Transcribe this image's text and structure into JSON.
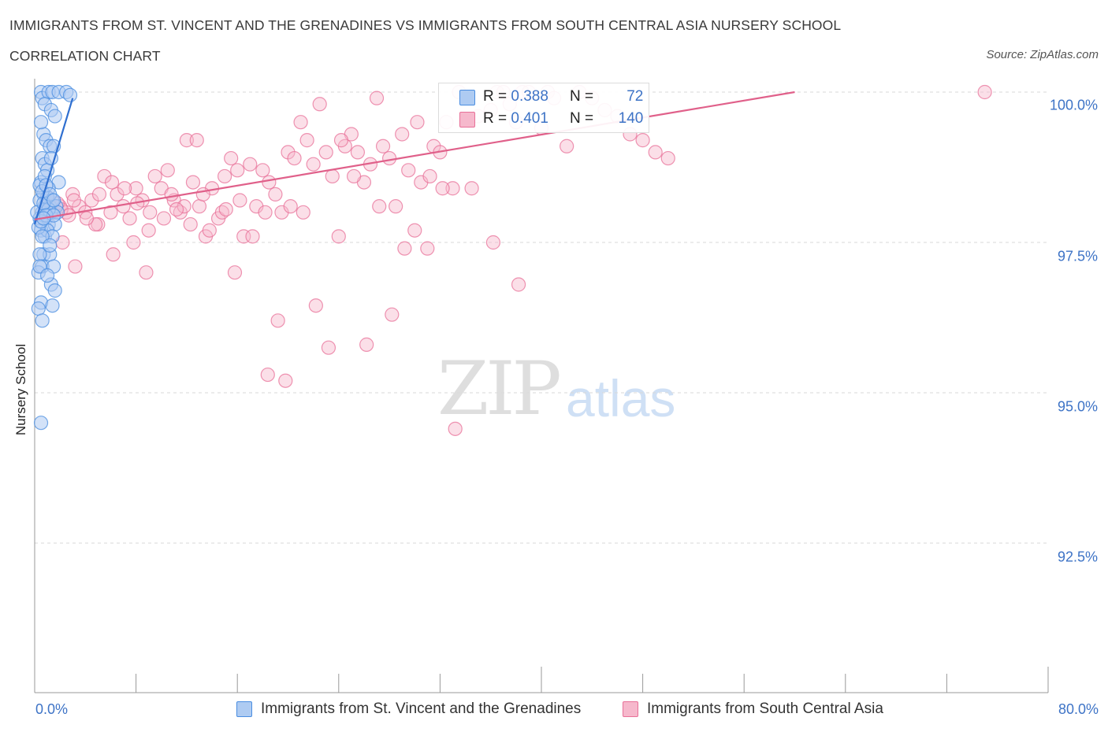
{
  "title_line1": "IMMIGRANTS FROM ST. VINCENT AND THE GRENADINES VS IMMIGRANTS FROM SOUTH CENTRAL ASIA NURSERY SCHOOL",
  "title_line2": "CORRELATION CHART",
  "source": "Source: ZipAtlas.com",
  "watermark_zip": "ZIP",
  "watermark_atlas": "atlas",
  "colors": {
    "blue": "#4a8de0",
    "blue_fill": "#aecbf2",
    "pink": "#e87098",
    "pink_fill": "#f6b8cc",
    "tick_text": "#3d73c6"
  },
  "legend": {
    "r1_label": "R = ",
    "r1_value": "0.388",
    "n1_label": "N = ",
    "n1_value": "72",
    "r2_label": "R = ",
    "r2_value": "0.401",
    "n2_label": "N = ",
    "n2_value": "140"
  },
  "chart_data": {
    "type": "scatter",
    "title": "IMMIGRANTS FROM ST. VINCENT AND THE GRENADINES VS IMMIGRANTS FROM SOUTH CENTRAL ASIA NURSERY SCHOOL CORRELATION CHART",
    "xlabel": "",
    "ylabel": "Nursery School",
    "xlim": [
      0,
      80
    ],
    "ylim": [
      90.0,
      100.3
    ],
    "x_tick_labels": [
      "0.0%",
      "80.0%"
    ],
    "y_ticks": [
      92.5,
      95.0,
      97.5,
      100.0
    ],
    "y_tick_labels": [
      "92.5%",
      "95.0%",
      "97.5%",
      "100.0%"
    ],
    "grid": true,
    "legend_position": "bottom",
    "series": [
      {
        "name": "Immigrants from St. Vincent and the Grenadines",
        "color": "#4a8de0",
        "R": 0.388,
        "N": 72,
        "trend": {
          "x": [
            0.0,
            3.0
          ],
          "y": [
            97.8,
            99.9
          ]
        },
        "points": [
          [
            0.5,
            100.0
          ],
          [
            0.6,
            99.9
          ],
          [
            1.1,
            100.0
          ],
          [
            1.4,
            100.0
          ],
          [
            1.9,
            100.0
          ],
          [
            2.5,
            100.0
          ],
          [
            2.8,
            99.95
          ],
          [
            0.8,
            99.8
          ],
          [
            1.3,
            99.7
          ],
          [
            1.6,
            99.6
          ],
          [
            0.7,
            99.3
          ],
          [
            0.9,
            99.2
          ],
          [
            1.2,
            99.1
          ],
          [
            1.5,
            99.1
          ],
          [
            0.6,
            98.9
          ],
          [
            0.8,
            98.8
          ],
          [
            1.0,
            98.7
          ],
          [
            0.5,
            98.5
          ],
          [
            1.9,
            98.5
          ],
          [
            0.7,
            98.3
          ],
          [
            1.1,
            98.4
          ],
          [
            0.4,
            98.2
          ],
          [
            0.8,
            98.1
          ],
          [
            1.2,
            98.1
          ],
          [
            1.4,
            98.2
          ],
          [
            0.6,
            98.0
          ],
          [
            0.9,
            97.9
          ],
          [
            1.3,
            98.0
          ],
          [
            0.4,
            97.9
          ],
          [
            1.1,
            97.8
          ],
          [
            1.6,
            97.8
          ],
          [
            0.5,
            97.7
          ],
          [
            0.8,
            97.6
          ],
          [
            1.0,
            97.7
          ],
          [
            1.4,
            97.6
          ],
          [
            0.7,
            97.3
          ],
          [
            1.2,
            97.3
          ],
          [
            0.4,
            97.3
          ],
          [
            0.6,
            97.1
          ],
          [
            1.5,
            97.1
          ],
          [
            0.3,
            97.0
          ],
          [
            1.3,
            96.8
          ],
          [
            1.6,
            96.7
          ],
          [
            0.5,
            96.5
          ],
          [
            1.4,
            96.45
          ],
          [
            0.3,
            96.4
          ],
          [
            0.6,
            96.2
          ],
          [
            0.5,
            94.5
          ],
          [
            0.9,
            98.05
          ],
          [
            1.7,
            98.1
          ],
          [
            0.4,
            98.45
          ],
          [
            1.0,
            98.25
          ],
          [
            0.2,
            98.0
          ],
          [
            0.3,
            97.75
          ],
          [
            1.8,
            98.0
          ],
          [
            0.5,
            97.85
          ],
          [
            1.1,
            98.05
          ],
          [
            0.7,
            98.15
          ],
          [
            0.9,
            97.95
          ],
          [
            1.5,
            97.95
          ],
          [
            0.6,
            97.6
          ],
          [
            0.8,
            98.6
          ],
          [
            1.2,
            97.45
          ],
          [
            0.4,
            97.1
          ],
          [
            1.0,
            96.95
          ],
          [
            0.5,
            99.5
          ],
          [
            1.3,
            98.9
          ],
          [
            0.6,
            98.35
          ],
          [
            0.9,
            98.45
          ],
          [
            1.2,
            98.3
          ],
          [
            0.7,
            97.9
          ],
          [
            1.5,
            98.2
          ]
        ]
      },
      {
        "name": "Immigrants from South Central Asia",
        "color": "#e87098",
        "R": 0.401,
        "N": 140,
        "trend": {
          "x": [
            0.0,
            60.0
          ],
          "y": [
            97.88,
            100.0
          ]
        },
        "points": [
          [
            1.5,
            98.0
          ],
          [
            2.0,
            98.1
          ],
          [
            2.5,
            98.0
          ],
          [
            3.0,
            98.3
          ],
          [
            3.5,
            98.1
          ],
          [
            4.0,
            98.0
          ],
          [
            4.5,
            98.2
          ],
          [
            5.0,
            97.8
          ],
          [
            5.5,
            98.6
          ],
          [
            6.0,
            98.0
          ],
          [
            6.5,
            98.3
          ],
          [
            7.0,
            98.1
          ],
          [
            7.5,
            97.9
          ],
          [
            8.0,
            98.4
          ],
          [
            8.5,
            98.2
          ],
          [
            9.0,
            97.7
          ],
          [
            9.5,
            98.6
          ],
          [
            10.0,
            98.4
          ],
          [
            10.5,
            98.7
          ],
          [
            11.0,
            98.2
          ],
          [
            11.5,
            98.0
          ],
          [
            12.0,
            99.2
          ],
          [
            12.5,
            98.5
          ],
          [
            13.0,
            98.1
          ],
          [
            13.5,
            97.6
          ],
          [
            14.0,
            98.4
          ],
          [
            14.5,
            97.9
          ],
          [
            15.0,
            98.6
          ],
          [
            15.5,
            98.9
          ],
          [
            16.0,
            98.7
          ],
          [
            16.5,
            97.6
          ],
          [
            17.0,
            98.8
          ],
          [
            17.5,
            98.1
          ],
          [
            18.0,
            98.7
          ],
          [
            18.5,
            98.5
          ],
          [
            19.0,
            98.3
          ],
          [
            19.5,
            98.0
          ],
          [
            20.0,
            99.0
          ],
          [
            20.5,
            98.9
          ],
          [
            21.0,
            99.5
          ],
          [
            21.5,
            99.2
          ],
          [
            22.0,
            98.8
          ],
          [
            22.5,
            99.8
          ],
          [
            23.0,
            99.0
          ],
          [
            23.5,
            98.6
          ],
          [
            24.0,
            97.6
          ],
          [
            24.5,
            99.1
          ],
          [
            25.0,
            99.3
          ],
          [
            25.5,
            99.0
          ],
          [
            26.0,
            98.5
          ],
          [
            26.5,
            98.8
          ],
          [
            27.0,
            99.9
          ],
          [
            27.5,
            99.1
          ],
          [
            28.0,
            98.9
          ],
          [
            28.5,
            98.1
          ],
          [
            29.0,
            99.3
          ],
          [
            29.5,
            98.7
          ],
          [
            30.0,
            97.7
          ],
          [
            30.5,
            98.5
          ],
          [
            31.0,
            97.4
          ],
          [
            31.5,
            99.1
          ],
          [
            32.0,
            99.0
          ],
          [
            32.5,
            99.5
          ],
          [
            33.0,
            98.4
          ],
          [
            33.5,
            100.0
          ],
          [
            34.0,
            99.5
          ],
          [
            34.5,
            98.4
          ],
          [
            35.0,
            99.6
          ],
          [
            36.0,
            99.7
          ],
          [
            36.5,
            100.0
          ],
          [
            37.0,
            100.0
          ],
          [
            37.5,
            99.8
          ],
          [
            38.0,
            99.5
          ],
          [
            38.5,
            100.0
          ],
          [
            39.0,
            100.0
          ],
          [
            40.0,
            99.4
          ],
          [
            40.5,
            100.0
          ],
          [
            41.0,
            99.9
          ],
          [
            42.0,
            99.1
          ],
          [
            43.0,
            100.0
          ],
          [
            44.0,
            99.9
          ],
          [
            45.0,
            99.7
          ],
          [
            46.0,
            99.6
          ],
          [
            47.0,
            99.3
          ],
          [
            48.0,
            99.2
          ],
          [
            49.0,
            99.0
          ],
          [
            50.0,
            98.9
          ],
          [
            2.2,
            97.5
          ],
          [
            3.2,
            97.1
          ],
          [
            4.8,
            97.8
          ],
          [
            6.2,
            97.3
          ],
          [
            7.8,
            97.5
          ],
          [
            8.8,
            97.0
          ],
          [
            10.8,
            98.3
          ],
          [
            11.8,
            98.1
          ],
          [
            12.8,
            99.2
          ],
          [
            13.8,
            97.7
          ],
          [
            14.8,
            98.0
          ],
          [
            15.8,
            97.0
          ],
          [
            17.2,
            97.6
          ],
          [
            18.2,
            98.0
          ],
          [
            19.2,
            96.2
          ],
          [
            20.2,
            98.1
          ],
          [
            21.2,
            98.0
          ],
          [
            22.2,
            96.45
          ],
          [
            23.2,
            95.75
          ],
          [
            24.2,
            99.2
          ],
          [
            25.2,
            98.6
          ],
          [
            26.2,
            95.8
          ],
          [
            27.2,
            98.1
          ],
          [
            28.2,
            96.3
          ],
          [
            29.2,
            97.4
          ],
          [
            30.2,
            99.5
          ],
          [
            31.2,
            98.6
          ],
          [
            32.2,
            98.4
          ],
          [
            33.2,
            94.4
          ],
          [
            36.2,
            97.5
          ],
          [
            38.2,
            96.8
          ],
          [
            18.4,
            95.3
          ],
          [
            19.8,
            95.2
          ],
          [
            16.2,
            98.2
          ],
          [
            15.1,
            98.05
          ],
          [
            13.3,
            98.3
          ],
          [
            12.3,
            97.8
          ],
          [
            11.2,
            98.05
          ],
          [
            10.2,
            97.9
          ],
          [
            9.1,
            98.0
          ],
          [
            8.1,
            98.15
          ],
          [
            7.1,
            98.4
          ],
          [
            6.1,
            98.5
          ],
          [
            5.1,
            98.3
          ],
          [
            4.1,
            97.9
          ],
          [
            3.1,
            98.2
          ],
          [
            2.1,
            98.05
          ],
          [
            1.2,
            98.1
          ],
          [
            0.8,
            98.0
          ],
          [
            1.0,
            98.25
          ],
          [
            1.8,
            98.15
          ],
          [
            2.7,
            97.95
          ],
          [
            75.0,
            100.0
          ]
        ]
      }
    ]
  },
  "bottom_legend": {
    "item1": "Immigrants from St. Vincent and the Grenadines",
    "item2": "Immigrants from South Central Asia"
  }
}
